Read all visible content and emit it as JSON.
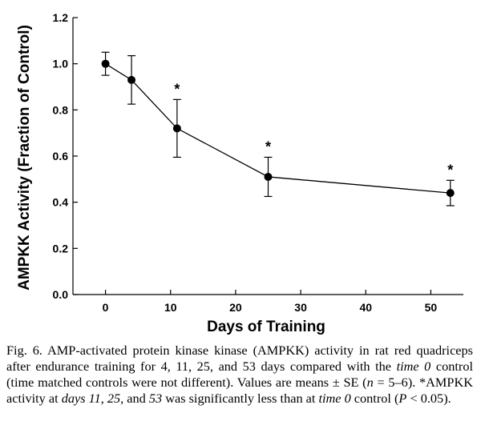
{
  "chart_data": {
    "type": "line",
    "title": "",
    "xlabel": "Days of Training",
    "ylabel": "AMPKK Activity (Fraction of Control)",
    "xlim": [
      -5,
      55
    ],
    "ylim": [
      0.0,
      1.2
    ],
    "x_ticks": [
      0,
      10,
      20,
      30,
      40,
      50
    ],
    "y_ticks": [
      "0.0",
      "0.2",
      "0.4",
      "0.6",
      "0.8",
      "1.0",
      "1.2"
    ],
    "series": [
      {
        "name": "AMPKK activity",
        "x": [
          0,
          4,
          11,
          25,
          53
        ],
        "values": [
          1.0,
          0.93,
          0.72,
          0.51,
          0.44
        ],
        "error": [
          0.05,
          0.105,
          0.125,
          0.085,
          0.055
        ],
        "significant": [
          false,
          false,
          true,
          true,
          true
        ]
      }
    ],
    "significance_marker": "*",
    "legend": "none",
    "grid": false
  },
  "caption": {
    "fig_label": "Fig. 6.",
    "parts": [
      {
        "t": " AMP-activated protein kinase kinase (AMPKK) activity in rat red quadriceps after endurance training for 4, 11, 25, and 53 days compared with the ",
        "i": false
      },
      {
        "t": "time 0",
        "i": true
      },
      {
        "t": " control (time matched controls were not different). Values are means ± SE (",
        "i": false
      },
      {
        "t": "n",
        "i": true
      },
      {
        "t": " = 5–6). *AMPKK activity at ",
        "i": false
      },
      {
        "t": "days 11",
        "i": true
      },
      {
        "t": ", ",
        "i": false
      },
      {
        "t": "25",
        "i": true
      },
      {
        "t": ", and ",
        "i": false
      },
      {
        "t": "53",
        "i": true
      },
      {
        "t": " was significantly less than at ",
        "i": false
      },
      {
        "t": "time 0",
        "i": true
      },
      {
        "t": " control (",
        "i": false
      },
      {
        "t": "P",
        "i": true
      },
      {
        "t": " < 0.05).",
        "i": false
      }
    ]
  }
}
